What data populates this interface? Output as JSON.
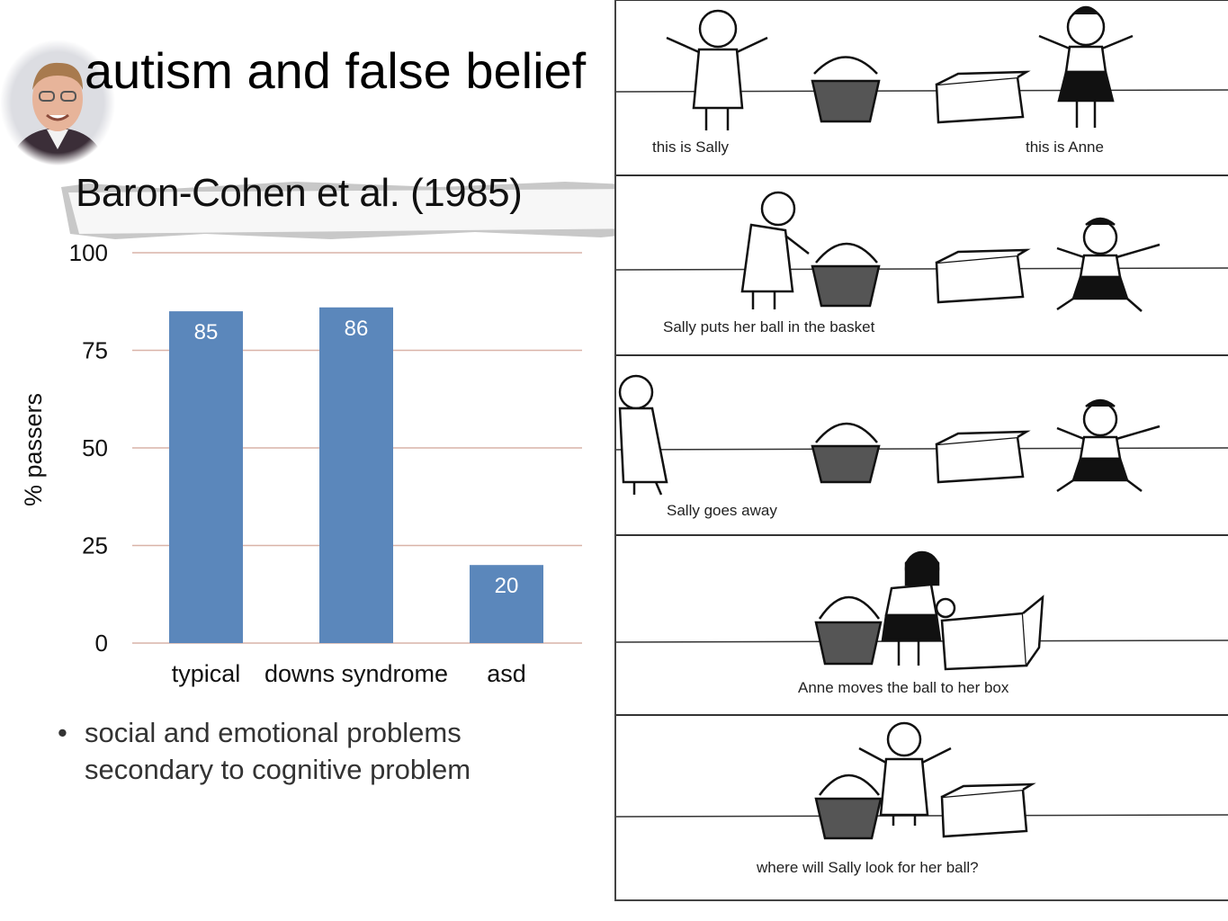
{
  "slide": {
    "title": "autism and false belief",
    "citation": "Baron-Cohen et al. (1985)",
    "bullet": "social and emotional problems secondary to cognitive problem"
  },
  "chart_data": {
    "type": "bar",
    "categories": [
      "typical",
      "downs syndrome",
      "asd"
    ],
    "values": [
      85,
      86,
      20
    ],
    "data_labels": [
      "85",
      "86",
      "20"
    ],
    "ylabel": "% passers",
    "ylim": [
      0,
      100
    ],
    "yticks": [
      "0",
      "25",
      "50",
      "75",
      "100"
    ],
    "grid": true,
    "bar_color": "#5b87bb",
    "grid_color": "#d9b3a8"
  },
  "comic": {
    "captions": [
      "this is Sally",
      "this is Anne",
      "Sally puts her ball in the basket",
      "Sally goes away",
      "Anne moves the ball to her box",
      "where will Sally look for her ball?"
    ]
  }
}
